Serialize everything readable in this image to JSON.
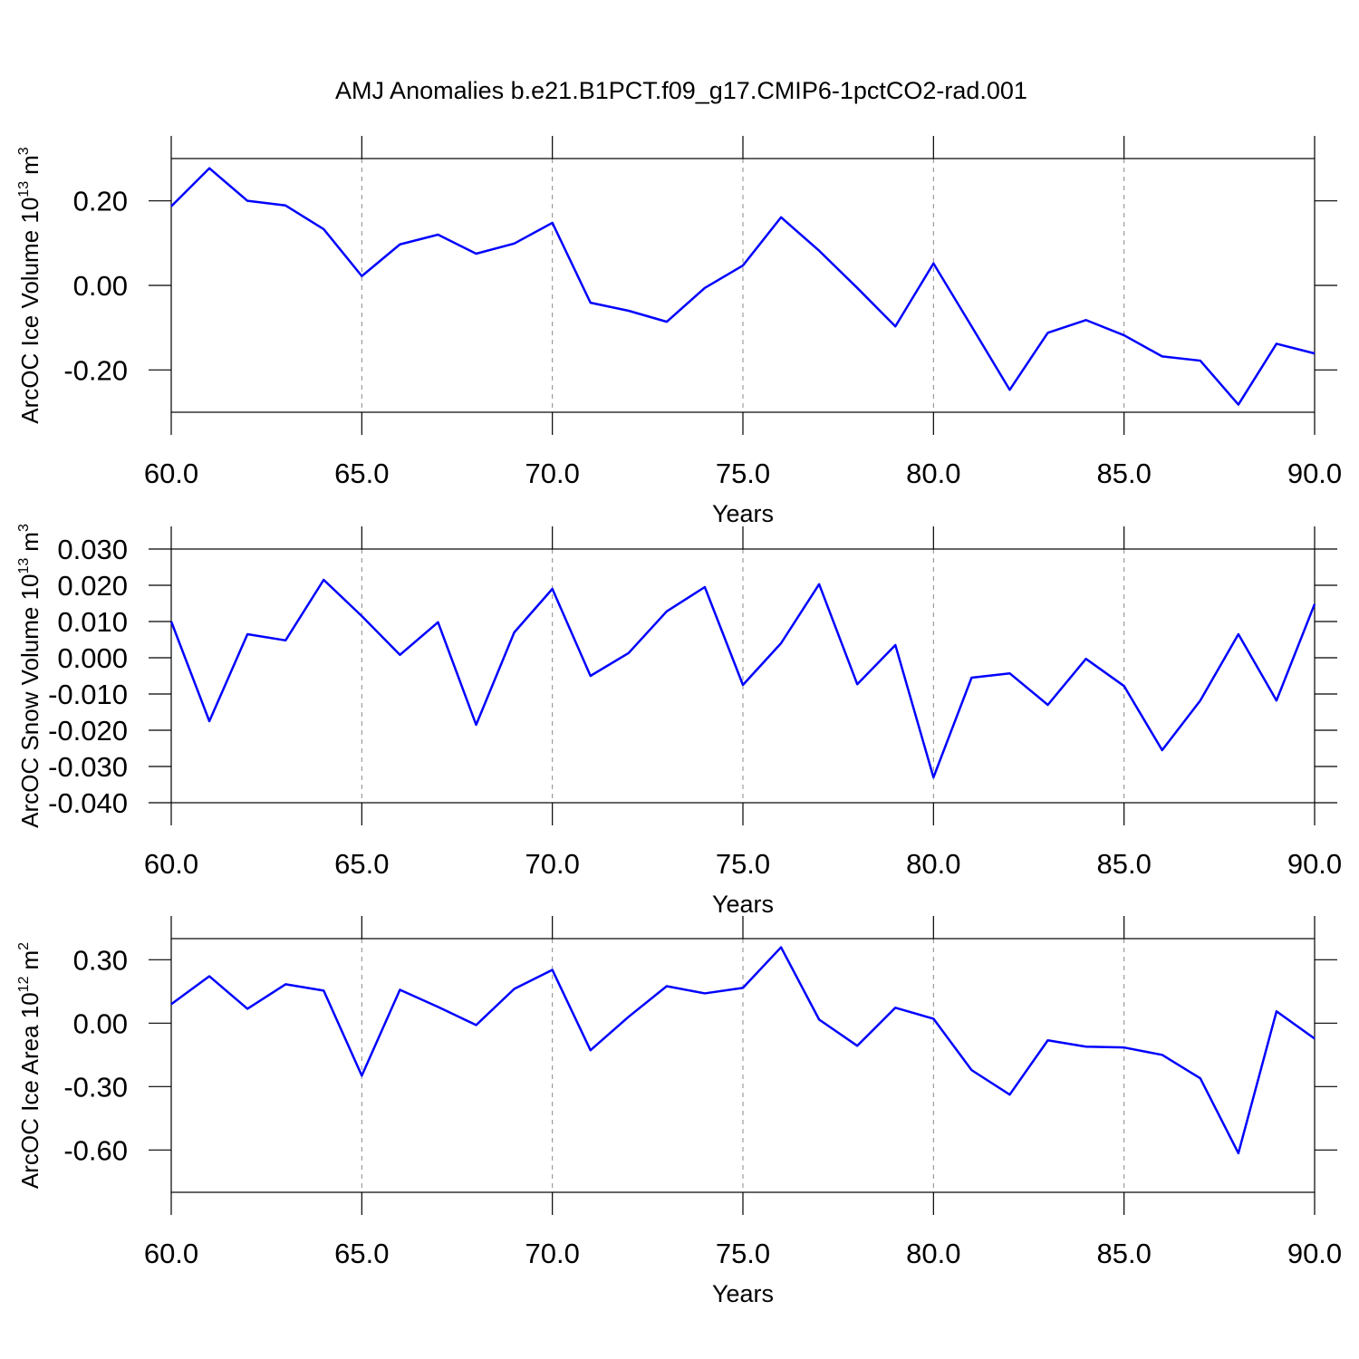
{
  "chart_data": [
    {
      "type": "line",
      "title": "AMJ Anomalies b.e21.B1PCT.f09_g17.CMIP6-1pctCO2-rad.001",
      "xlabel": "Years",
      "ylabel": "ArcOC Ice Volume 10",
      "ylabel_exp": "13",
      "ylabel_unit": "m",
      "ylabel_unit_exp": "3",
      "color": "#0000ff",
      "xgrid": true,
      "x": [
        60,
        61,
        62,
        63,
        64,
        65,
        66,
        67,
        68,
        69,
        70,
        71,
        72,
        73,
        74,
        75,
        76,
        77,
        78,
        79,
        80,
        81,
        82,
        83,
        84,
        85,
        86,
        87,
        88,
        89,
        90
      ],
      "values": [
        0.187,
        0.277,
        0.2,
        0.189,
        0.133,
        0.022,
        0.097,
        0.12,
        0.075,
        0.099,
        0.148,
        -0.041,
        -0.06,
        -0.086,
        -0.006,
        0.047,
        0.161,
        0.082,
        -0.006,
        -0.097,
        0.052,
        -0.097,
        -0.247,
        -0.112,
        -0.082,
        -0.118,
        -0.168,
        -0.178,
        -0.282,
        -0.138,
        -0.161
      ],
      "xlim": [
        60,
        90
      ],
      "xticks": [
        {
          "value": 60,
          "label": "60.0"
        },
        {
          "value": 65,
          "label": "65.0"
        },
        {
          "value": 70,
          "label": "70.0"
        },
        {
          "value": 75,
          "label": "75.0"
        },
        {
          "value": 80,
          "label": "80.0"
        },
        {
          "value": 85,
          "label": "85.0"
        },
        {
          "value": 90,
          "label": "90.0"
        }
      ],
      "ylim": [
        -0.3,
        0.3
      ],
      "yticks": [
        {
          "value": -0.2,
          "label": "-0.20"
        },
        {
          "value": 0,
          "label": "0.00"
        },
        {
          "value": 0.2,
          "label": "0.20"
        }
      ]
    },
    {
      "type": "line",
      "xlabel": "Years",
      "ylabel": "ArcOC Snow Volume 10",
      "ylabel_exp": "13",
      "ylabel_unit": "m",
      "ylabel_unit_exp": "3",
      "color": "#0000ff",
      "xgrid": true,
      "x": [
        60,
        61,
        62,
        63,
        64,
        65,
        66,
        67,
        68,
        69,
        70,
        71,
        72,
        73,
        74,
        75,
        76,
        77,
        78,
        79,
        80,
        81,
        82,
        83,
        84,
        85,
        86,
        87,
        88,
        89,
        90
      ],
      "values": [
        0.01,
        -0.0175,
        0.0065,
        0.0048,
        0.0215,
        0.0115,
        0.0008,
        0.0098,
        -0.0185,
        0.007,
        0.019,
        -0.005,
        0.0013,
        0.0128,
        0.0195,
        -0.0075,
        0.004,
        0.0203,
        -0.0073,
        0.0035,
        -0.033,
        -0.0055,
        -0.0043,
        -0.013,
        -0.0003,
        -0.0078,
        -0.0255,
        -0.0118,
        0.0065,
        -0.0118,
        0.0148
      ],
      "xlim": [
        60,
        90
      ],
      "xticks": [
        {
          "value": 60,
          "label": "60.0"
        },
        {
          "value": 65,
          "label": "65.0"
        },
        {
          "value": 70,
          "label": "70.0"
        },
        {
          "value": 75,
          "label": "75.0"
        },
        {
          "value": 80,
          "label": "80.0"
        },
        {
          "value": 85,
          "label": "85.0"
        },
        {
          "value": 90,
          "label": "90.0"
        }
      ],
      "ylim": [
        -0.04,
        0.03
      ],
      "yticks": [
        {
          "value": -0.04,
          "label": "-0.040"
        },
        {
          "value": -0.03,
          "label": "-0.030"
        },
        {
          "value": -0.02,
          "label": "-0.020"
        },
        {
          "value": -0.01,
          "label": "-0.010"
        },
        {
          "value": 0,
          "label": "0.000"
        },
        {
          "value": 0.01,
          "label": "0.010"
        },
        {
          "value": 0.02,
          "label": "0.020"
        },
        {
          "value": 0.03,
          "label": "0.030"
        }
      ]
    },
    {
      "type": "line",
      "xlabel": "Years",
      "ylabel": "ArcOC Ice Area 10",
      "ylabel_exp": "12",
      "ylabel_unit": "m",
      "ylabel_unit_exp": "2",
      "color": "#0000ff",
      "xgrid": true,
      "x": [
        60,
        61,
        62,
        63,
        64,
        65,
        66,
        67,
        68,
        69,
        70,
        71,
        72,
        73,
        74,
        75,
        76,
        77,
        78,
        79,
        80,
        81,
        82,
        83,
        84,
        85,
        86,
        87,
        88,
        89,
        90
      ],
      "values": [
        0.09,
        0.222,
        0.068,
        0.184,
        0.154,
        -0.248,
        0.158,
        0.077,
        -0.009,
        0.162,
        0.252,
        -0.128,
        0.03,
        0.175,
        0.141,
        0.167,
        0.359,
        0.017,
        -0.107,
        0.073,
        0.021,
        -0.222,
        -0.338,
        -0.081,
        -0.111,
        -0.115,
        -0.15,
        -0.261,
        -0.615,
        0.056,
        -0.073
      ],
      "xlim": [
        60,
        90
      ],
      "xticks": [
        {
          "value": 60,
          "label": "60.0"
        },
        {
          "value": 65,
          "label": "65.0"
        },
        {
          "value": 70,
          "label": "70.0"
        },
        {
          "value": 75,
          "label": "75.0"
        },
        {
          "value": 80,
          "label": "80.0"
        },
        {
          "value": 85,
          "label": "85.0"
        },
        {
          "value": 90,
          "label": "90.0"
        }
      ],
      "ylim": [
        -0.8,
        0.4
      ],
      "yticks": [
        {
          "value": -0.6,
          "label": "-0.60"
        },
        {
          "value": -0.3,
          "label": "-0.30"
        },
        {
          "value": 0,
          "label": "0.00"
        },
        {
          "value": 0.3,
          "label": "0.30"
        }
      ]
    }
  ]
}
